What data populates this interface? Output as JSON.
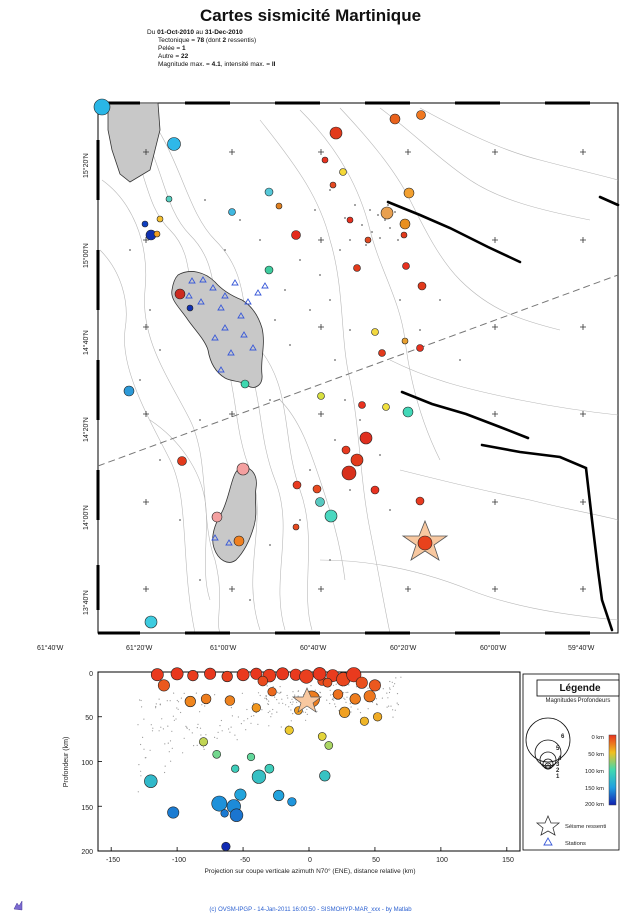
{
  "header": {
    "title": "Cartes sismicité Martinique",
    "period_prefix": "Du ",
    "period_start": "01-Oct-2010",
    "period_mid": " au ",
    "period_end": "31-Dec-2010",
    "tectonic_label": "Tectonique = ",
    "tectonic_count": "78",
    "tectonic_suffix_a": " (dont ",
    "felt_count": "2",
    "tectonic_suffix_b": " ressentis)",
    "peles_label": "Pelée = ",
    "peles_count": "1",
    "other_label": "Autre = ",
    "other_count": "22",
    "mag_label": "Magnitude max. = ",
    "mag_value": "4.1",
    "intensity_label": ", intensité max. = ",
    "intensity_value": "II"
  },
  "map": {
    "lon_ticks": [
      "61°40'W",
      "61°20'W",
      "61°00'W",
      "60°40'W",
      "60°20'W",
      "60°00'W",
      "59°40'W"
    ],
    "lat_ticks": [
      "15°20'N",
      "15°00'N",
      "14°40'N",
      "14°20'N",
      "14°00'N",
      "13°40'N"
    ]
  },
  "section": {
    "xlabel": "Projection sur coupe verticale azimuth N70° (ENE), distance relative (km)",
    "ylabel": "Profondeur (km)",
    "x_ticks": [
      "-150",
      "-100",
      "-50",
      "0",
      "50",
      "100",
      "150"
    ],
    "y_ticks": [
      "0",
      "50",
      "100",
      "150",
      "200"
    ]
  },
  "legend": {
    "title": "Légende",
    "subtitle": "Magnitudes",
    "subtitle2": "Profondeurs",
    "mag_labels": [
      "6",
      "5",
      "4",
      "3",
      "2",
      "1"
    ],
    "depth_labels": [
      "0 km",
      "50 km",
      "100 km",
      "150 km",
      "200 km"
    ],
    "felt_label": "Séisme ressenti",
    "stations_label": "Stations"
  },
  "footer": {
    "text": "(c) OVSM-IPGP - 14-Jan-2011 16:00:50 - SISMOHYP-MAR_xxx - by Matlab"
  },
  "colors": {
    "shallow": "#e8321e",
    "mid": "#f0a020",
    "deep": "#20a8d8",
    "very_deep": "#1030c0",
    "island": "#c8c8c8",
    "station": "#3a5ad8"
  },
  "chart_data": {
    "type": "scatter",
    "depth_section": {
      "xlabel": "Projection sur coupe verticale azimuth N70° (ENE), distance relative (km)",
      "ylabel": "Profondeur (km)",
      "xlim": [
        -160,
        160
      ],
      "ylim": [
        200,
        0
      ],
      "points": [
        {
          "x": -120,
          "y": 122,
          "mag": 2.6
        },
        {
          "x": -103,
          "y": 157,
          "mag": 2.2
        },
        {
          "x": -68,
          "y": 147,
          "mag": 3.2
        },
        {
          "x": -57,
          "y": 150,
          "mag": 2.8
        },
        {
          "x": -55,
          "y": 160,
          "mag": 2.6
        },
        {
          "x": -52,
          "y": 137,
          "mag": 2.2
        },
        {
          "x": -38,
          "y": 117,
          "mag": 2.8
        },
        {
          "x": -30,
          "y": 108,
          "mag": 1.6
        },
        {
          "x": -23,
          "y": 138,
          "mag": 2.0
        },
        {
          "x": -13,
          "y": 145,
          "mag": 1.5
        },
        {
          "x": -63,
          "y": 195,
          "mag": 1.5
        },
        {
          "x": -64,
          "y": 158,
          "mag": 1.2
        },
        {
          "x": 12,
          "y": 116,
          "mag": 2.0
        },
        {
          "x": -80,
          "y": 78,
          "mag": 1.4
        },
        {
          "x": -70,
          "y": 92,
          "mag": 1.3
        },
        {
          "x": -56,
          "y": 108,
          "mag": 1.2
        },
        {
          "x": -44,
          "y": 95,
          "mag": 1.2
        },
        {
          "x": -90,
          "y": 33,
          "mag": 2.0
        },
        {
          "x": -110,
          "y": 15,
          "mag": 2.2
        },
        {
          "x": -78,
          "y": 30,
          "mag": 1.8
        },
        {
          "x": -60,
          "y": 32,
          "mag": 1.8
        },
        {
          "x": -40,
          "y": 40,
          "mag": 1.5
        },
        {
          "x": -28,
          "y": 22,
          "mag": 1.5
        },
        {
          "x": -8,
          "y": 43,
          "mag": 1.3
        },
        {
          "x": 2,
          "y": 30,
          "mag": 3.4
        },
        {
          "x": 10,
          "y": 10,
          "mag": 1.6
        },
        {
          "x": 22,
          "y": 25,
          "mag": 1.8
        },
        {
          "x": 27,
          "y": 45,
          "mag": 2.0
        },
        {
          "x": 35,
          "y": 30,
          "mag": 2.0
        },
        {
          "x": 46,
          "y": 27,
          "mag": 2.2
        },
        {
          "x": 50,
          "y": 15,
          "mag": 2.2
        },
        {
          "x": 52,
          "y": 50,
          "mag": 1.5
        },
        {
          "x": 42,
          "y": 55,
          "mag": 1.4
        },
        {
          "x": 10,
          "y": 72,
          "mag": 1.3
        },
        {
          "x": 15,
          "y": 82,
          "mag": 1.3
        },
        {
          "x": -15,
          "y": 65,
          "mag": 1.4
        },
        {
          "x": -115,
          "y": 3,
          "mag": 2.4
        },
        {
          "x": -100,
          "y": 2,
          "mag": 2.4
        },
        {
          "x": -88,
          "y": 4,
          "mag": 2.0
        },
        {
          "x": -75,
          "y": 2,
          "mag": 2.2
        },
        {
          "x": -62,
          "y": 5,
          "mag": 2.0
        },
        {
          "x": -50,
          "y": 3,
          "mag": 2.4
        },
        {
          "x": -40,
          "y": 2,
          "mag": 2.2
        },
        {
          "x": -30,
          "y": 4,
          "mag": 2.6
        },
        {
          "x": -20,
          "y": 2,
          "mag": 2.4
        },
        {
          "x": -10,
          "y": 3,
          "mag": 2.2
        },
        {
          "x": -2,
          "y": 5,
          "mag": 2.8
        },
        {
          "x": 8,
          "y": 2,
          "mag": 2.6
        },
        {
          "x": 18,
          "y": 4,
          "mag": 2.4
        },
        {
          "x": 26,
          "y": 8,
          "mag": 2.8
        },
        {
          "x": 34,
          "y": 3,
          "mag": 3.0
        },
        {
          "x": 40,
          "y": 12,
          "mag": 2.2
        },
        {
          "x": -35,
          "y": 10,
          "mag": 1.8
        },
        {
          "x": 14,
          "y": 12,
          "mag": 1.6
        }
      ]
    }
  }
}
